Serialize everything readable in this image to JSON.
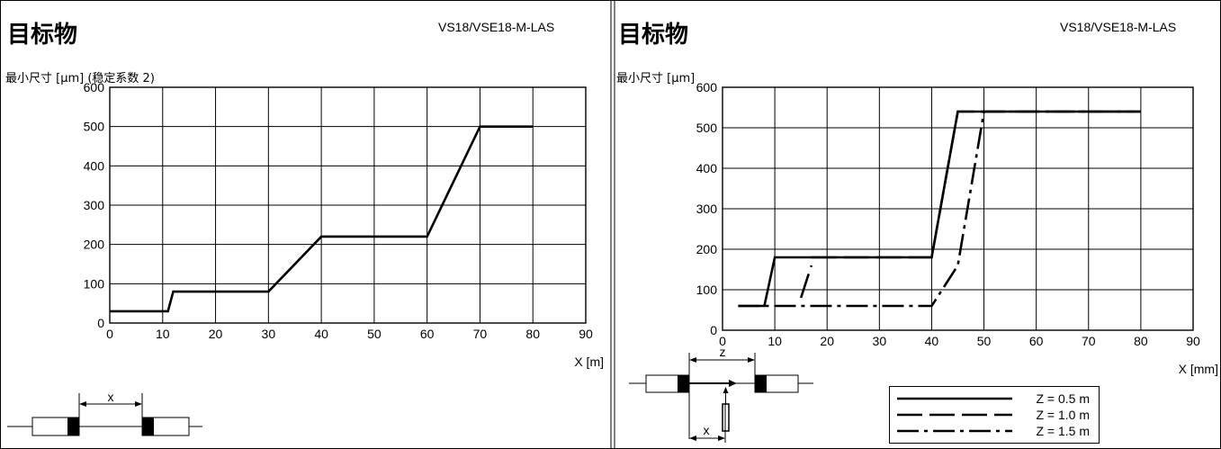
{
  "chart_data": [
    {
      "type": "line",
      "title": "目标物",
      "model": "VS18/VSE18-M-LAS",
      "ylabel": "最小尺寸 [μm] (稳定系数 2)",
      "xlabel": "X [m]",
      "xlim": [
        0,
        90
      ],
      "ylim": [
        0,
        600
      ],
      "xticks": [
        0,
        10,
        20,
        30,
        40,
        50,
        60,
        70,
        80,
        90
      ],
      "yticks": [
        0,
        100,
        200,
        300,
        400,
        500,
        600
      ],
      "grid": true,
      "series": [
        {
          "style": "solid",
          "x": [
            0,
            11,
            12,
            30,
            40,
            60,
            70,
            80
          ],
          "y": [
            30,
            30,
            80,
            80,
            220,
            220,
            500,
            500
          ]
        }
      ],
      "diagram": {
        "distance_label": "x"
      }
    },
    {
      "type": "line",
      "title": "目标物",
      "model": "VS18/VSE18-M-LAS",
      "ylabel": "最小尺寸 [μm]",
      "xlabel": "X [mm]",
      "xlim": [
        0,
        90
      ],
      "ylim": [
        0,
        600
      ],
      "xticks": [
        0,
        10,
        20,
        30,
        40,
        50,
        60,
        70,
        80,
        90
      ],
      "yticks": [
        0,
        100,
        200,
        300,
        400,
        500,
        600
      ],
      "grid": true,
      "legend_position": "bottom-right",
      "series": [
        {
          "name": "Z = 0.5 m",
          "style": "solid",
          "x": [
            3,
            8,
            10,
            40,
            45,
            80
          ],
          "y": [
            60,
            60,
            180,
            180,
            540,
            540
          ]
        },
        {
          "name": "Z = 1.0 m",
          "style": "dash",
          "x": [
            17,
            40,
            45,
            50,
            80
          ],
          "y": [
            180,
            180,
            540,
            540,
            540
          ]
        },
        {
          "name": "Z = 1.5 m",
          "style": "dashdot",
          "x": [
            3,
            15,
            16,
            40,
            45,
            50,
            80
          ],
          "y": [
            60,
            60,
            60,
            60,
            160,
            540,
            540
          ]
        }
      ],
      "extra_segments": [
        {
          "style": "dash",
          "x": [
            15,
            17
          ],
          "y": [
            80,
            160
          ]
        }
      ],
      "diagram": {
        "distance_label_z": "z",
        "distance_label_x": "x"
      }
    }
  ]
}
